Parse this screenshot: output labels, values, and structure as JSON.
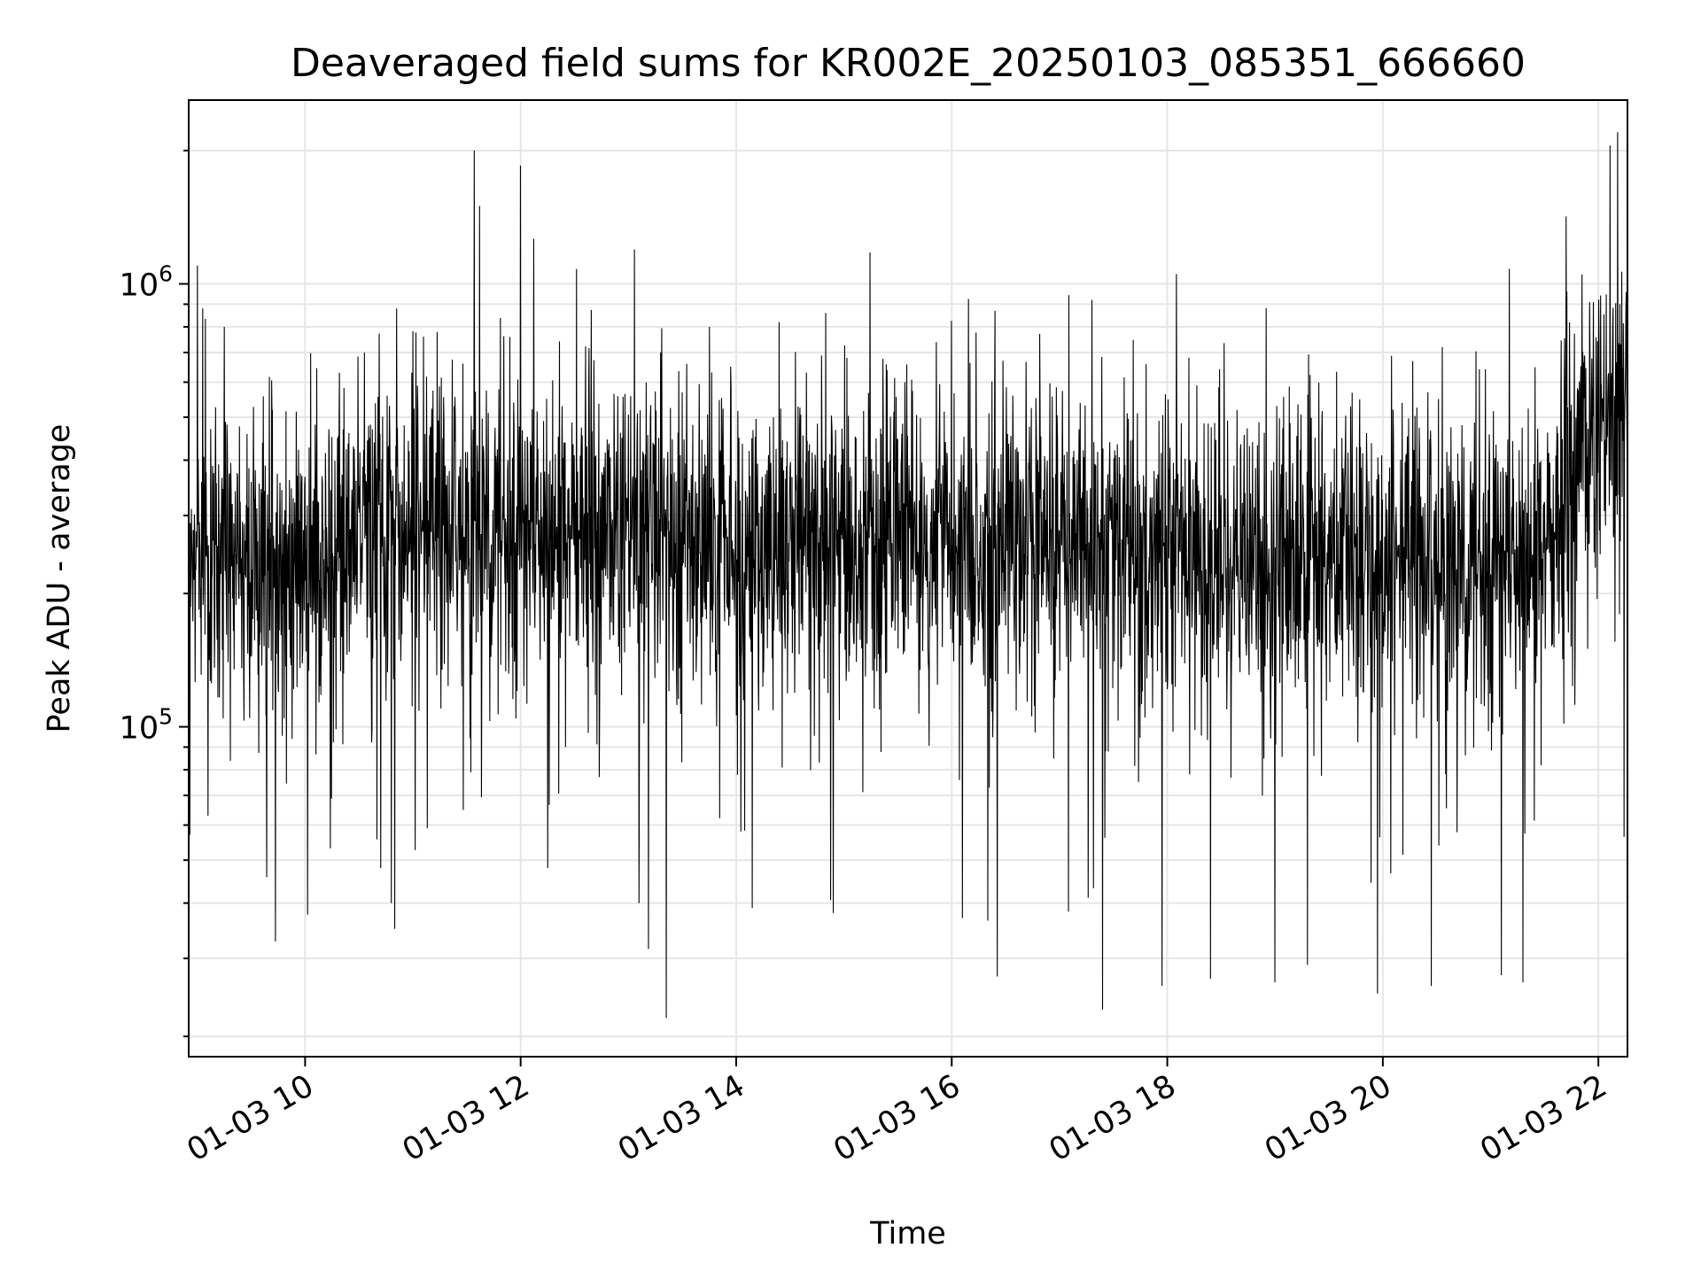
{
  "chart_data": {
    "type": "line",
    "title": "Deaveraged field sums for KR002E_20250103_085351_666660",
    "xlabel": "Time",
    "ylabel": "Peak ADU - average",
    "x_axis": {
      "kind": "datetime",
      "date": "2025-01-03",
      "range_hours": [
        8.92,
        22.27
      ],
      "ticks": [
        {
          "hour": 10,
          "label": "01-03 10"
        },
        {
          "hour": 12,
          "label": "01-03 12"
        },
        {
          "hour": 14,
          "label": "01-03 14"
        },
        {
          "hour": 16,
          "label": "01-03 16"
        },
        {
          "hour": 18,
          "label": "01-03 18"
        },
        {
          "hour": 20,
          "label": "01-03 20"
        },
        {
          "hour": 22,
          "label": "01-03 22"
        }
      ]
    },
    "y_axis": {
      "scale": "log",
      "range": [
        18000,
        2600000
      ],
      "major_ticks": [
        {
          "value": 100000,
          "base": "10",
          "exp": "5"
        },
        {
          "value": 1000000,
          "base": "10",
          "exp": "6"
        }
      ]
    },
    "grid": true,
    "line_color": "#000000",
    "series": [
      {
        "baseline": [
          [
            8.92,
            250000
          ],
          [
            9.5,
            230000
          ],
          [
            10.5,
            250000
          ],
          [
            11.5,
            290000
          ],
          [
            12.5,
            275000
          ],
          [
            14.0,
            255000
          ],
          [
            15.5,
            270000
          ],
          [
            17.0,
            265000
          ],
          [
            18.5,
            245000
          ],
          [
            20.0,
            240000
          ],
          [
            21.4,
            240000
          ],
          [
            21.7,
            290000
          ],
          [
            21.8,
            420000
          ],
          [
            22.27,
            480000
          ]
        ],
        "spikes_up": [
          {
            "t": 9.0,
            "v": 1100000
          },
          {
            "t": 9.05,
            "v": 880000
          },
          {
            "t": 9.25,
            "v": 800000
          },
          {
            "t": 10.55,
            "v": 700000
          },
          {
            "t": 10.85,
            "v": 880000
          },
          {
            "t": 11.1,
            "v": 760000
          },
          {
            "t": 11.57,
            "v": 2000000
          },
          {
            "t": 11.62,
            "v": 1500000
          },
          {
            "t": 12.0,
            "v": 1850000
          },
          {
            "t": 12.52,
            "v": 1080000
          },
          {
            "t": 13.3,
            "v": 700000
          },
          {
            "t": 14.4,
            "v": 820000
          },
          {
            "t": 17.3,
            "v": 920000
          },
          {
            "t": 20.55,
            "v": 720000
          },
          {
            "t": 21.7,
            "v": 1420000
          },
          {
            "t": 21.85,
            "v": 1050000
          },
          {
            "t": 22.18,
            "v": 2200000
          },
          {
            "t": 22.2,
            "v": 900000
          }
        ],
        "spikes_down": [
          {
            "t": 8.93,
            "v": 57000
          },
          {
            "t": 9.1,
            "v": 63000
          },
          {
            "t": 10.7,
            "v": 48000
          },
          {
            "t": 10.8,
            "v": 40000
          },
          {
            "t": 10.83,
            "v": 35000
          },
          {
            "t": 12.25,
            "v": 48000
          },
          {
            "t": 13.1,
            "v": 40000
          },
          {
            "t": 13.35,
            "v": 22000
          },
          {
            "t": 14.15,
            "v": 39000
          },
          {
            "t": 14.9,
            "v": 38000
          },
          {
            "t": 16.1,
            "v": 37000
          },
          {
            "t": 17.4,
            "v": 23000
          },
          {
            "t": 17.95,
            "v": 26000
          },
          {
            "t": 18.4,
            "v": 27000
          },
          {
            "t": 19.0,
            "v": 26500
          },
          {
            "t": 19.3,
            "v": 29000
          },
          {
            "t": 19.95,
            "v": 25000
          },
          {
            "t": 20.45,
            "v": 26000
          },
          {
            "t": 21.1,
            "v": 27500
          },
          {
            "t": 21.3,
            "v": 26500
          },
          {
            "t": 21.9,
            "v": 150000
          }
        ]
      }
    ]
  }
}
